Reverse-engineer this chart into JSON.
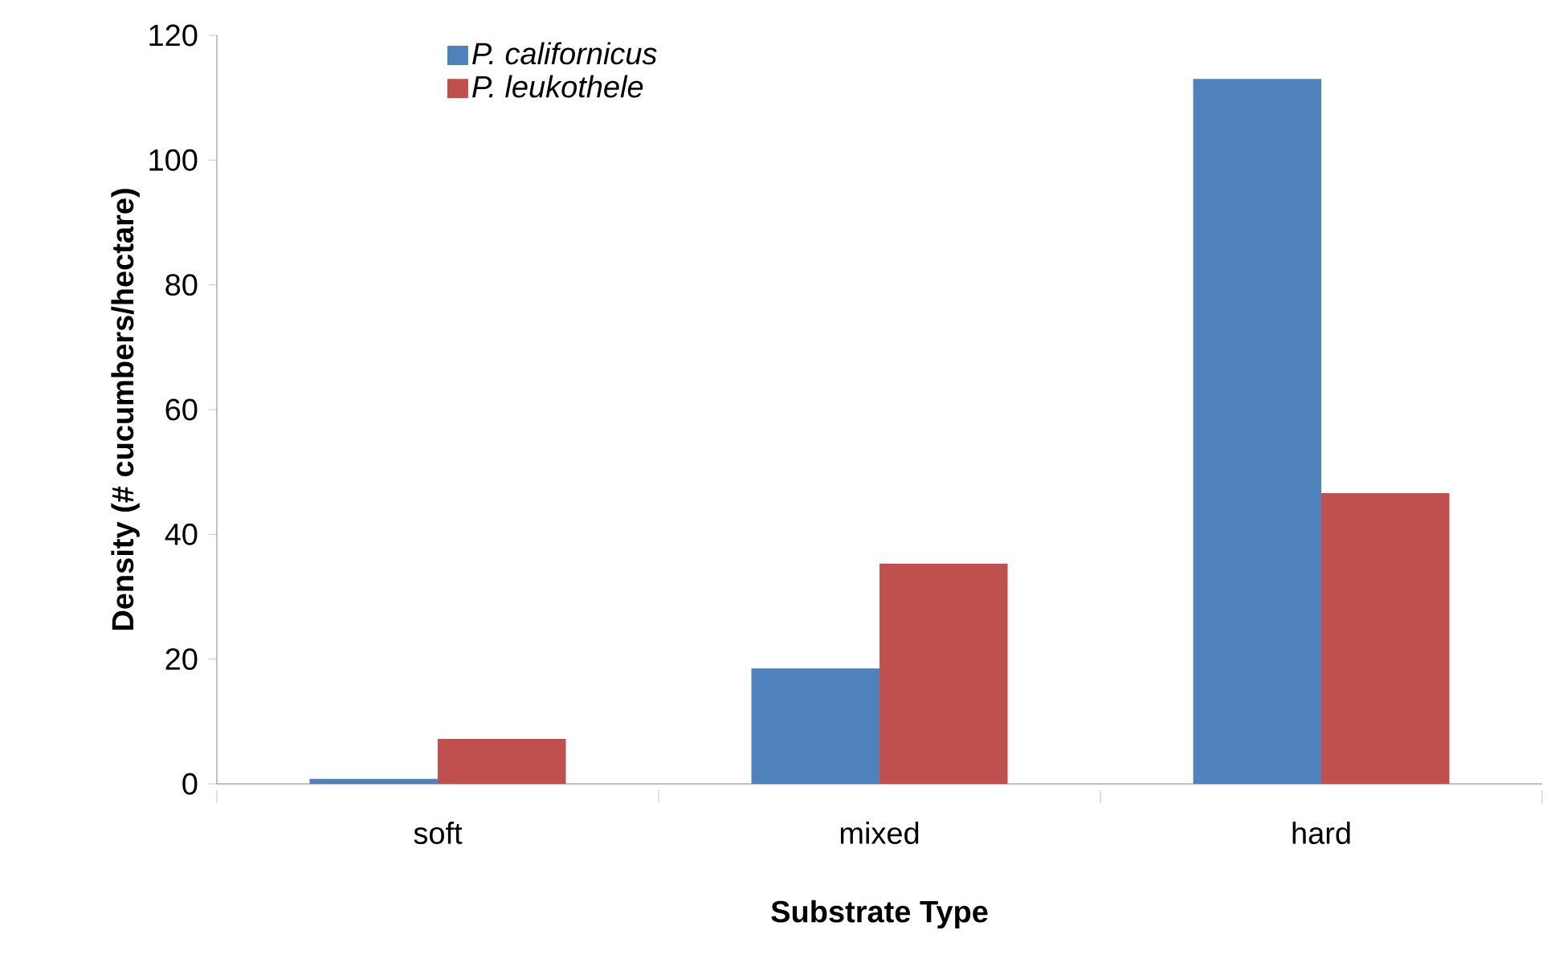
{
  "chart_data": {
    "type": "bar",
    "xlabel": "Substrate Type",
    "ylabel": "Density (# cucumbers/hectare)",
    "categories": [
      "soft",
      "mixed",
      "hard"
    ],
    "series": [
      {
        "name": "P. californicus",
        "color": "#4f81bd",
        "values": [
          0.8,
          18.5,
          113
        ]
      },
      {
        "name": "P. leukothele",
        "color": "#c0504d",
        "values": [
          7.2,
          35.3,
          46.6
        ]
      }
    ],
    "ylim": [
      0,
      120
    ],
    "yticks": [
      0,
      20,
      40,
      60,
      80,
      100,
      120
    ],
    "grid": false,
    "legend": "top"
  }
}
